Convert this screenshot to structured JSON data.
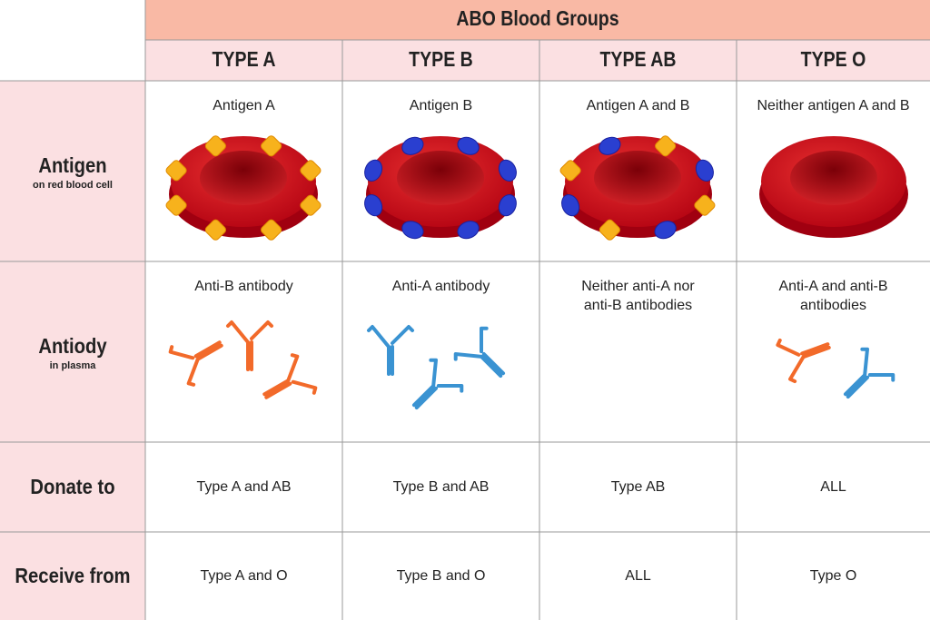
{
  "header": {
    "title": "ABO Blood Groups"
  },
  "table": {
    "columns": [
      "TYPE A",
      "TYPE B",
      "TYPE AB",
      "TYPE O"
    ],
    "rows": [
      {
        "label": "Antigen",
        "sublabel": "on red blood cell",
        "cells": [
          "Antigen A",
          "Antigen B",
          "Antigen A and B",
          "Neither antigen A and B"
        ]
      },
      {
        "label": "Antiody",
        "sublabel": "in plasma",
        "cells": [
          "Anti-B antibody",
          "Anti-A antibody",
          "Neither anti-A nor anti-B antibodies",
          "Anti-A and anti-B antibodies"
        ]
      },
      {
        "label": "Donate to",
        "cells": [
          "Type A and AB",
          "Type B and AB",
          "Type AB",
          "ALL"
        ]
      },
      {
        "label": "Receive from",
        "cells": [
          "Type A and O",
          "Type B and O",
          "ALL",
          "Type O"
        ]
      }
    ]
  }
}
